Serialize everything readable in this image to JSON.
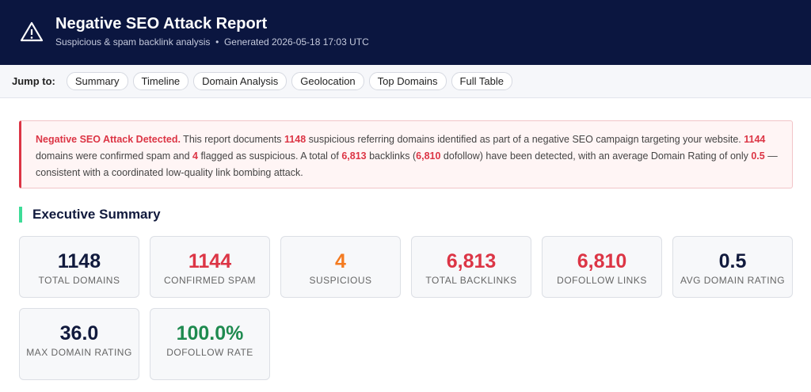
{
  "header": {
    "title": "Negative SEO Attack Report",
    "subtitle": "Suspicious & spam backlink analysis",
    "separator": "•",
    "generated": "Generated 2026-05-18 17:03 UTC"
  },
  "nav": {
    "label": "Jump to:",
    "links": [
      "Summary",
      "Timeline",
      "Domain Analysis",
      "Geolocation",
      "Top Domains",
      "Full Table"
    ]
  },
  "alert": {
    "segments": [
      {
        "text": "Negative SEO Attack Detected.",
        "bold": true
      },
      {
        "text": " This report documents ",
        "bold": false
      },
      {
        "text": "1148",
        "bold": true
      },
      {
        "text": " suspicious referring domains identified as part of a negative SEO campaign targeting your website. ",
        "bold": false
      },
      {
        "text": "1144",
        "bold": true
      },
      {
        "text": " domains were confirmed spam and ",
        "bold": false
      },
      {
        "text": "4",
        "bold": true
      },
      {
        "text": " flagged as suspicious. A total of ",
        "bold": false
      },
      {
        "text": "6,813",
        "bold": true
      },
      {
        "text": " backlinks (",
        "bold": false
      },
      {
        "text": "6,810",
        "bold": true
      },
      {
        "text": " dofollow) have been detected, with an average Domain Rating of only ",
        "bold": false
      },
      {
        "text": "0.5",
        "bold": true
      },
      {
        "text": " — consistent with a coordinated low-quality link bombing attack.",
        "bold": false
      }
    ]
  },
  "summary": {
    "title": "Executive Summary",
    "cards": [
      {
        "value": "1148",
        "label": "TOTAL DOMAINS",
        "color": "#111a3d"
      },
      {
        "value": "1144",
        "label": "CONFIRMED SPAM",
        "color": "#dc3545"
      },
      {
        "value": "4",
        "label": "SUSPICIOUS",
        "color": "#f47b20"
      },
      {
        "value": "6,813",
        "label": "TOTAL BACKLINKS",
        "color": "#dc3545"
      },
      {
        "value": "6,810",
        "label": "DOFOLLOW LINKS",
        "color": "#dc3545"
      },
      {
        "value": "0.5",
        "label": "AVG DOMAIN RATING",
        "color": "#111a3d"
      },
      {
        "value": "36.0",
        "label": "MAX DOMAIN RATING",
        "color": "#111a3d"
      },
      {
        "value": "100.0%",
        "label": "DOFOLLOW RATE",
        "color": "#1e8a4f"
      }
    ]
  }
}
